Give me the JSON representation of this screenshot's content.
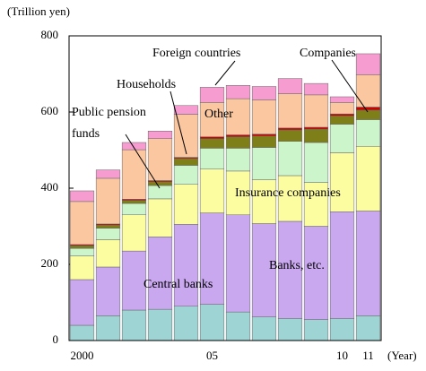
{
  "chart_data": {
    "type": "stacked-bar",
    "y_label": "(Trillion yen)",
    "x_label": "(Year)",
    "categories": [
      "2000",
      null,
      null,
      null,
      null,
      "05",
      null,
      null,
      null,
      null,
      "10",
      "11"
    ],
    "ylim": [
      0,
      800
    ],
    "yticks": [
      0,
      200,
      400,
      600,
      800
    ],
    "series": [
      {
        "name": "Central banks",
        "color": "#9fd4d4",
        "values": [
          40,
          65,
          80,
          82,
          90,
          95,
          75,
          62,
          58,
          55,
          58,
          65
        ]
      },
      {
        "name": "Banks, etc.",
        "color": "#c9a8f0",
        "values": [
          120,
          128,
          155,
          190,
          215,
          240,
          255,
          245,
          255,
          245,
          280,
          275
        ]
      },
      {
        "name": "Insurance companies",
        "color": "#fcfca0",
        "values": [
          62,
          72,
          95,
          100,
          105,
          115,
          115,
          115,
          120,
          115,
          155,
          170
        ]
      },
      {
        "name": "Public pension funds",
        "color": "#ccf5cc",
        "values": [
          20,
          30,
          30,
          35,
          50,
          55,
          60,
          85,
          90,
          105,
          75,
          70
        ]
      },
      {
        "name": "Households",
        "color": "#7f7f1a",
        "values": [
          7,
          8,
          8,
          10,
          18,
          25,
          30,
          30,
          30,
          35,
          22,
          25
        ]
      },
      {
        "name": "Companies",
        "color": "#cc0000",
        "values": [
          3,
          3,
          3,
          3,
          3,
          5,
          5,
          5,
          5,
          5,
          5,
          8
        ]
      },
      {
        "name": "Other",
        "color": "#fbc7a0",
        "values": [
          113,
          120,
          130,
          110,
          113,
          90,
          95,
          90,
          90,
          85,
          30,
          85
        ]
      },
      {
        "name": "Foreign countries",
        "color": "#f79cd0",
        "values": [
          28,
          22,
          19,
          20,
          23,
          40,
          35,
          35,
          40,
          30,
          15,
          55
        ]
      }
    ]
  }
}
